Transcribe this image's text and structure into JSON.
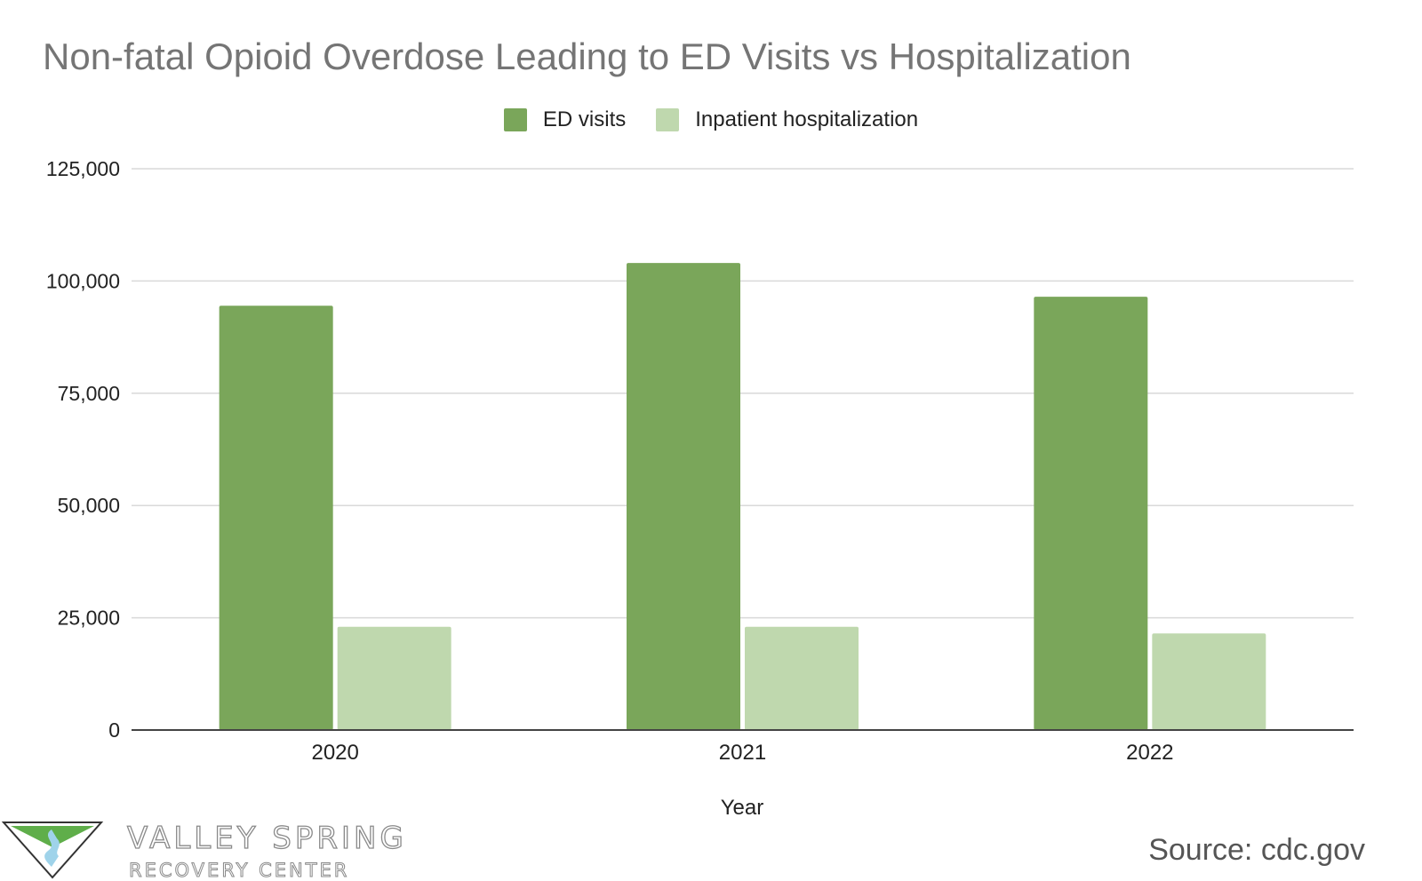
{
  "chart_data": {
    "type": "bar",
    "title": "Non-fatal Opioid Overdose Leading to ED Visits vs Hospitalization",
    "xlabel": "Year",
    "ylabel": "",
    "categories": [
      "2020",
      "2021",
      "2022"
    ],
    "series": [
      {
        "name": "ED visits",
        "color": "#7aa65a",
        "values": [
          94500,
          104000,
          96500
        ]
      },
      {
        "name": "Inpatient hospitalization",
        "color": "#bfd8ae",
        "values": [
          23000,
          23000,
          21500
        ]
      }
    ],
    "ylim": [
      0,
      125000
    ],
    "yticks": [
      0,
      25000,
      50000,
      75000,
      100000,
      125000
    ],
    "ytick_labels": [
      "0",
      "25,000",
      "50,000",
      "75,000",
      "100,000",
      "125,000"
    ],
    "grid": true,
    "legend_position": "top-center"
  },
  "source": "Source: cdc.gov",
  "brand": {
    "name": "VALLEY SPRING",
    "subtitle": "RECOVERY CENTER",
    "colors": {
      "green": "#5fae4a",
      "blue": "#9fd3ea",
      "outline": "#333333"
    }
  }
}
